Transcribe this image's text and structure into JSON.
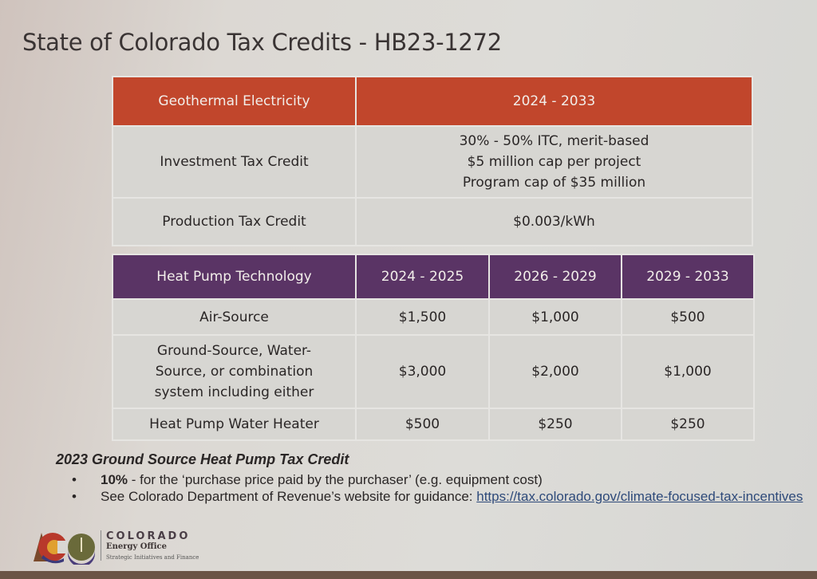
{
  "title": "State of Colorado Tax Credits - HB23-1272",
  "colors": {
    "geothermal_header": "#c1462c",
    "heat_pump_header": "#5a3465"
  },
  "geothermal": {
    "header": [
      "Geothermal Electricity",
      "2024 - 2033"
    ],
    "rows": [
      {
        "label": "Investment Tax Credit",
        "value_lines": [
          "30% - 50% ITC, merit-based",
          "$5 million cap per project",
          "Program cap of $35 million"
        ]
      },
      {
        "label": "Production Tax Credit",
        "value_lines": [
          "$0.003/kWh"
        ]
      }
    ]
  },
  "heat_pump": {
    "header": [
      "Heat Pump Technology",
      "2024 - 2025",
      "2026 - 2029",
      "2029 - 2033"
    ],
    "rows": [
      {
        "label": "Air-Source",
        "values": [
          "$1,500",
          "$1,000",
          "$500"
        ]
      },
      {
        "label": "Ground-Source, Water-Source, or combination system including either",
        "values": [
          "$3,000",
          "$2,000",
          "$1,000"
        ]
      },
      {
        "label": "Heat Pump Water Heater",
        "values": [
          "$500",
          "$250",
          "$250"
        ]
      }
    ]
  },
  "notes": {
    "heading": "2023 Ground Source Heat Pump Tax Credit",
    "bullet1_bold": "10%",
    "bullet1_rest": " - for the ‘purchase price paid by the purchaser’ (e.g. equipment cost)",
    "bullet2_text": "See Colorado Department of Revenue’s website for guidance: ",
    "bullet2_link": "https://tax.colorado.gov/climate-focused-tax-incentives"
  },
  "logo": {
    "line1": "COLORADO",
    "line2": "Energy Office",
    "line3": "Strategic Initiatives and Finance",
    "badge": "CEO"
  }
}
